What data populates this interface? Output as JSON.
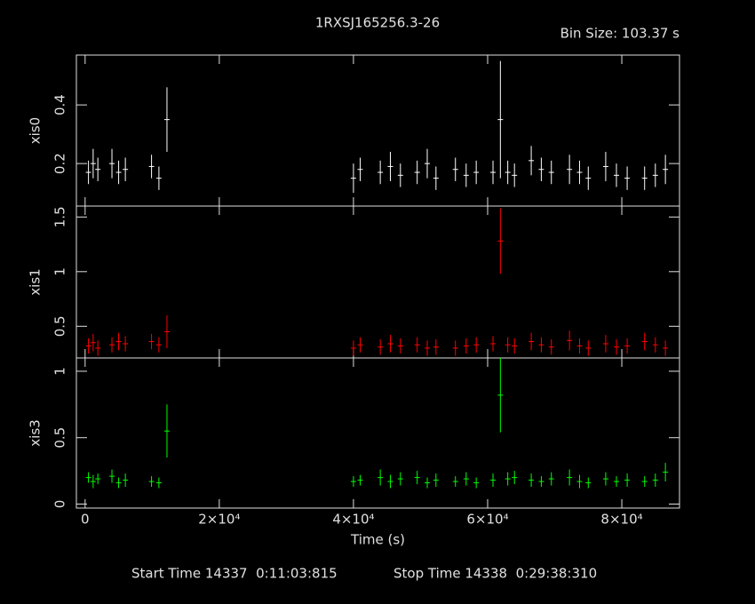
{
  "title": "1RXSJ165256.3-26",
  "bin_size": "Bin Size: 103.37 s",
  "start_time": "Start Time 14337  0:11:03:815",
  "stop_time": "Stop Time 14338  0:29:38:310",
  "chart_data": [
    {
      "type": "errorbar",
      "ylabel": "xis0",
      "color": "#ffffff",
      "x": [
        500,
        1200,
        1900,
        4000,
        5000,
        6000,
        9900,
        11000,
        12200,
        40000,
        41000,
        44000,
        45500,
        47000,
        49500,
        51000,
        52300,
        55200,
        56800,
        58300,
        60800,
        61900,
        63000,
        64000,
        66500,
        68000,
        69500,
        72200,
        73700,
        75000,
        77600,
        79200,
        80800,
        83400,
        85000,
        86500
      ],
      "values": [
        0.17,
        0.2,
        0.18,
        0.2,
        0.17,
        0.18,
        0.19,
        0.15,
        0.35,
        0.15,
        0.18,
        0.17,
        0.19,
        0.16,
        0.17,
        0.2,
        0.15,
        0.18,
        0.16,
        0.17,
        0.17,
        0.35,
        0.17,
        0.16,
        0.21,
        0.18,
        0.17,
        0.18,
        0.17,
        0.15,
        0.19,
        0.16,
        0.15,
        0.15,
        0.16,
        0.18
      ],
      "errors": [
        0.04,
        0.05,
        0.04,
        0.05,
        0.04,
        0.04,
        0.04,
        0.04,
        0.11,
        0.05,
        0.04,
        0.04,
        0.05,
        0.04,
        0.04,
        0.05,
        0.04,
        0.04,
        0.04,
        0.04,
        0.04,
        0.2,
        0.04,
        0.04,
        0.05,
        0.04,
        0.04,
        0.05,
        0.04,
        0.04,
        0.05,
        0.04,
        0.04,
        0.04,
        0.04,
        0.05
      ],
      "xlim": [
        -1300,
        88600
      ],
      "ylim": [
        0.055,
        0.57
      ],
      "yticks": [
        0.2,
        0.4
      ],
      "xticks": [
        0,
        20000,
        40000,
        60000,
        80000
      ]
    },
    {
      "type": "errorbar",
      "ylabel": "xis1",
      "color": "#ff0000",
      "x": [
        500,
        1200,
        1900,
        4000,
        5000,
        6000,
        9900,
        11000,
        12200,
        40000,
        41000,
        44000,
        45500,
        47000,
        49500,
        51000,
        52300,
        55200,
        56800,
        58300,
        60800,
        61900,
        63000,
        64000,
        66500,
        68000,
        69500,
        72200,
        73700,
        75000,
        77600,
        79200,
        80800,
        83400,
        85000,
        86500
      ],
      "values": [
        0.32,
        0.35,
        0.3,
        0.33,
        0.36,
        0.34,
        0.36,
        0.33,
        0.45,
        0.3,
        0.33,
        0.31,
        0.34,
        0.32,
        0.33,
        0.3,
        0.31,
        0.3,
        0.32,
        0.33,
        0.34,
        1.28,
        0.33,
        0.32,
        0.36,
        0.33,
        0.31,
        0.37,
        0.32,
        0.3,
        0.34,
        0.31,
        0.32,
        0.36,
        0.33,
        0.3
      ],
      "errors": [
        0.07,
        0.08,
        0.07,
        0.07,
        0.08,
        0.07,
        0.07,
        0.07,
        0.15,
        0.07,
        0.07,
        0.07,
        0.08,
        0.07,
        0.07,
        0.07,
        0.07,
        0.07,
        0.07,
        0.07,
        0.07,
        0.3,
        0.07,
        0.07,
        0.08,
        0.07,
        0.07,
        0.09,
        0.07,
        0.07,
        0.08,
        0.07,
        0.07,
        0.08,
        0.07,
        0.07
      ],
      "xlim": [
        -1300,
        88600
      ],
      "ylim": [
        0.21,
        1.6
      ],
      "yticks": [
        0.5,
        1,
        1.5
      ],
      "xticks": [
        0,
        20000,
        40000,
        60000,
        80000
      ]
    },
    {
      "type": "errorbar",
      "ylabel": "xis3",
      "color": "#00ff00",
      "xlabel": "Time (s)",
      "x": [
        500,
        1200,
        1900,
        4000,
        5000,
        6000,
        9900,
        11000,
        12200,
        40000,
        41000,
        44000,
        45500,
        47000,
        49500,
        51000,
        52300,
        55200,
        56800,
        58300,
        60800,
        61900,
        63000,
        64000,
        66500,
        68000,
        69500,
        72200,
        73700,
        75000,
        77600,
        79200,
        80800,
        83400,
        85000,
        86500
      ],
      "values": [
        0.2,
        0.17,
        0.19,
        0.21,
        0.16,
        0.18,
        0.17,
        0.16,
        0.55,
        0.17,
        0.18,
        0.2,
        0.17,
        0.19,
        0.2,
        0.16,
        0.18,
        0.17,
        0.19,
        0.16,
        0.18,
        0.82,
        0.19,
        0.2,
        0.18,
        0.17,
        0.19,
        0.2,
        0.17,
        0.16,
        0.19,
        0.17,
        0.18,
        0.17,
        0.18,
        0.24
      ],
      "errors": [
        0.04,
        0.05,
        0.04,
        0.05,
        0.04,
        0.05,
        0.04,
        0.04,
        0.2,
        0.04,
        0.04,
        0.06,
        0.05,
        0.05,
        0.05,
        0.04,
        0.05,
        0.04,
        0.05,
        0.04,
        0.05,
        0.28,
        0.05,
        0.05,
        0.05,
        0.04,
        0.05,
        0.06,
        0.05,
        0.04,
        0.05,
        0.04,
        0.05,
        0.04,
        0.05,
        0.07
      ],
      "xlim": [
        -1300,
        88600
      ],
      "ylim": [
        -0.03,
        1.1
      ],
      "yticks": [
        0,
        0.5,
        1
      ],
      "xticks": [
        0,
        {
          "value": 20000,
          "label": "2×10⁴"
        },
        {
          "value": 40000,
          "label": "4×10⁴"
        },
        {
          "value": 60000,
          "label": "6×10⁴"
        },
        {
          "value": 80000,
          "label": "8×10⁴"
        }
      ]
    }
  ]
}
